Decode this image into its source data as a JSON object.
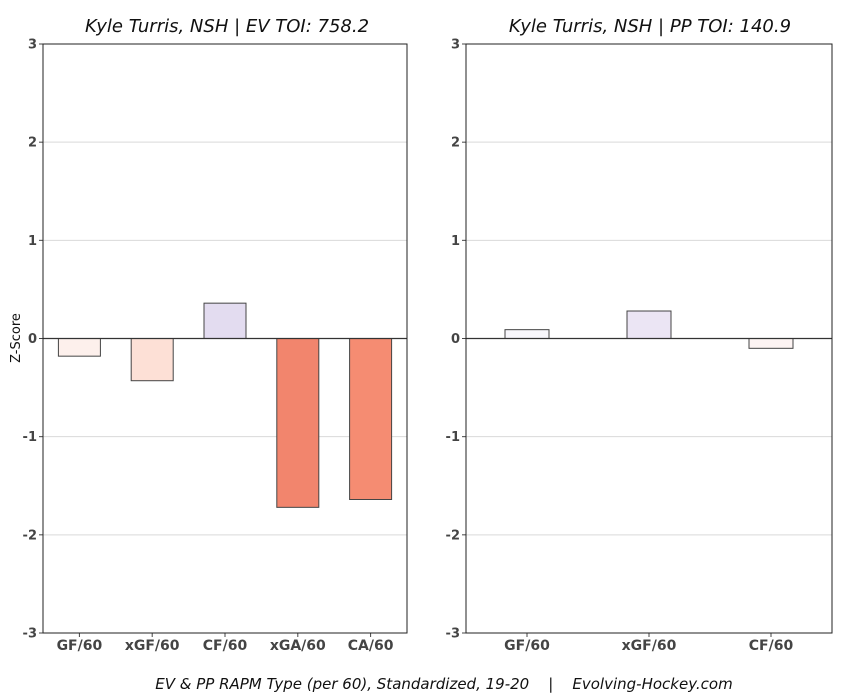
{
  "footer": "EV & PP RAPM Type (per 60), Standardized, 19-20    |    Evolving-Hockey.com",
  "ylabel": "Z-Score",
  "chart_data": [
    {
      "type": "bar",
      "title": "Kyle Turris, NSH  |  EV TOI: 758.2",
      "ylabel": "Z-Score",
      "ylim": [
        -3,
        3
      ],
      "yticks": [
        -3,
        -2,
        -1,
        0,
        1,
        2,
        3
      ],
      "grid": true,
      "categories": [
        "GF/60",
        "xGF/60",
        "CF/60",
        "xGA/60",
        "CA/60"
      ],
      "values": [
        -0.18,
        -0.43,
        0.36,
        -1.72,
        -1.64
      ],
      "colors": [
        "#fdf0ec",
        "#fde0d6",
        "#e3dcf0",
        "#f2856d",
        "#f58c72"
      ]
    },
    {
      "type": "bar",
      "title": "Kyle Turris, NSH  |  PP TOI: 140.9",
      "ylim": [
        -3,
        3
      ],
      "yticks": [
        -3,
        -2,
        -1,
        0,
        1,
        2,
        3
      ],
      "grid": true,
      "categories": [
        "GF/60",
        "xGF/60",
        "CF/60"
      ],
      "values": [
        0.09,
        0.28,
        -0.1
      ],
      "colors": [
        "#f7f6fb",
        "#ebe5f4",
        "#fdf4f3"
      ]
    }
  ]
}
